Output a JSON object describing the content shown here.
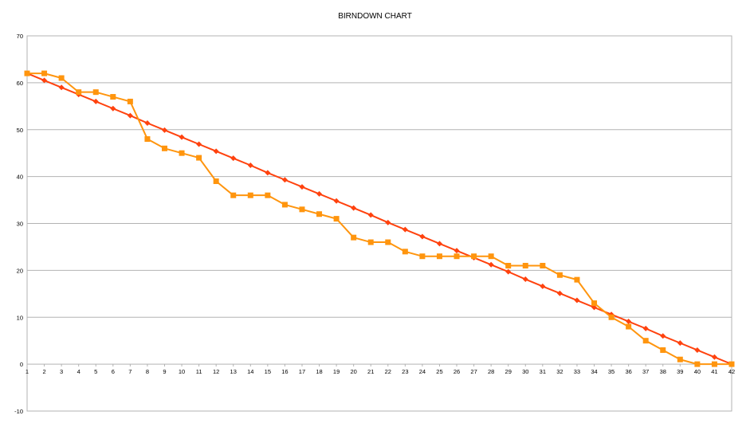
{
  "chart_data": {
    "type": "line",
    "title": "BIRNDOWN CHART",
    "xlabel": "",
    "ylabel": "",
    "x": [
      1,
      2,
      3,
      4,
      5,
      6,
      7,
      8,
      9,
      10,
      11,
      12,
      13,
      14,
      15,
      16,
      17,
      18,
      19,
      20,
      21,
      22,
      23,
      24,
      25,
      26,
      27,
      28,
      29,
      30,
      31,
      32,
      33,
      34,
      35,
      36,
      37,
      38,
      39,
      40,
      41,
      42
    ],
    "ylim": [
      -10,
      70
    ],
    "yticks": [
      -10,
      0,
      10,
      20,
      30,
      40,
      50,
      60,
      70
    ],
    "grid": true,
    "legend": "none",
    "series": [
      {
        "color": "#ff420e",
        "marker": "diamond",
        "values": [
          62,
          60.5,
          59,
          57.5,
          56,
          54.5,
          53,
          51.4,
          49.9,
          48.4,
          46.9,
          45.4,
          43.9,
          42.4,
          40.8,
          39.3,
          37.8,
          36.3,
          34.8,
          33.3,
          31.8,
          30.2,
          28.7,
          27.2,
          25.7,
          24.2,
          22.7,
          21.2,
          19.7,
          18.1,
          16.6,
          15.1,
          13.6,
          12.1,
          10.6,
          9.1,
          7.6,
          6,
          4.5,
          3,
          1.5,
          0
        ]
      },
      {
        "color": "#ff950e",
        "marker": "square",
        "values": [
          62,
          62,
          61,
          58,
          58,
          57,
          56,
          48,
          46,
          45,
          44,
          39,
          36,
          36,
          36,
          34,
          33,
          32,
          31,
          27,
          26,
          26,
          24,
          23,
          23,
          23,
          23,
          23,
          21,
          21,
          21,
          19,
          18,
          13,
          10,
          8,
          5,
          3,
          1,
          0,
          0,
          0
        ]
      }
    ]
  }
}
